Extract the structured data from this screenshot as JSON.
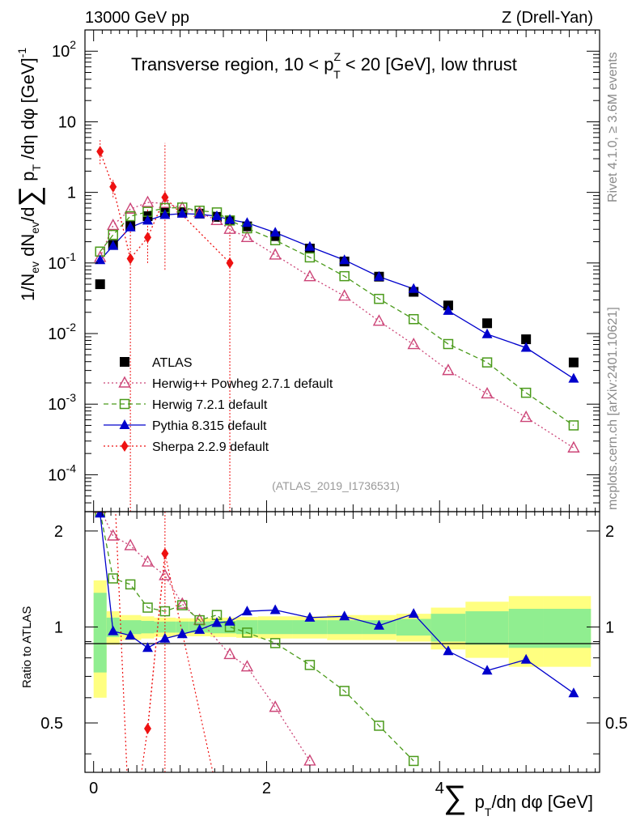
{
  "header": {
    "left": "13000 GeV pp",
    "right": "Z (Drell-Yan)"
  },
  "side_labels": {
    "rivet": "Rivet 4.1.0, ≥ 3.6M events",
    "mcplots": "mcplots.cern.ch [arXiv:2401.10621]"
  },
  "chart_data": [
    {
      "type": "scatter",
      "panel": "main",
      "title": "Transverse region, 10 < p_T^Z < 20 [GeV], low thrust",
      "analysis_id": "(ATLAS_2019_I1736531)",
      "ylabel": "1/N_ev dN_ev/d∑p_T/dη dφ [GeV]^-1",
      "xlabel": "∑ p_T/dη dφ [GeV]",
      "yscale": "log",
      "ylim": [
        3e-05,
        200
      ],
      "xlim": [
        -0.1,
        5.85
      ],
      "y_tick_labels": [
        "10^-4",
        "10^-3",
        "10^-2",
        "10^-1",
        "1",
        "10",
        "10^2"
      ],
      "legend": [
        "ATLAS",
        "Herwig++ Powheg 2.7.1 default",
        "Herwig 7.2.1 default",
        "Pythia 8.315 default",
        "Sherpa 2.2.9 default"
      ],
      "series": [
        {
          "name": "ATLAS",
          "color": "#000000",
          "marker": "square",
          "x": [
            0.075,
            0.225,
            0.425,
            0.625,
            0.825,
            1.025,
            1.225,
            1.425,
            1.575,
            1.775,
            2.1,
            2.5,
            2.9,
            3.3,
            3.7,
            4.1,
            4.55,
            5.0,
            5.55
          ],
          "y": [
            0.05,
            0.18,
            0.34,
            0.46,
            0.52,
            0.52,
            0.5,
            0.45,
            0.4,
            0.33,
            0.24,
            0.16,
            0.105,
            0.064,
            0.039,
            0.025,
            0.014,
            0.0083,
            0.0039
          ]
        },
        {
          "name": "Herwig++ Powheg 2.7.1 default",
          "color": "#cc4477",
          "marker": "triangle-open",
          "line": "dotted",
          "x": [
            0.075,
            0.225,
            0.425,
            0.625,
            0.825,
            1.025,
            1.225,
            1.425,
            1.575,
            1.775,
            2.1,
            2.5,
            2.9,
            3.3,
            3.7,
            4.1,
            4.55,
            5.0,
            5.55
          ],
          "y": [
            0.12,
            0.34,
            0.58,
            0.72,
            0.7,
            0.6,
            0.52,
            0.4,
            0.3,
            0.23,
            0.13,
            0.064,
            0.034,
            0.015,
            0.007,
            0.003,
            0.0014,
            0.00065,
            0.00024
          ]
        },
        {
          "name": "Herwig 7.2.1 default",
          "color": "#4a9a1a",
          "marker": "square-open",
          "line": "dashed",
          "x": [
            0.075,
            0.225,
            0.425,
            0.625,
            0.825,
            1.025,
            1.225,
            1.425,
            1.575,
            1.775,
            2.1,
            2.5,
            2.9,
            3.3,
            3.7,
            4.1,
            4.55,
            5.0,
            5.55
          ],
          "y": [
            0.145,
            0.25,
            0.46,
            0.53,
            0.6,
            0.61,
            0.55,
            0.52,
            0.4,
            0.31,
            0.21,
            0.12,
            0.065,
            0.031,
            0.016,
            0.0071,
            0.0039,
            0.00145,
            0.0005
          ]
        },
        {
          "name": "Pythia 8.315 default",
          "color": "#0000cc",
          "marker": "triangle",
          "line": "solid",
          "x": [
            0.075,
            0.225,
            0.425,
            0.625,
            0.825,
            1.025,
            1.225,
            1.425,
            1.575,
            1.775,
            2.1,
            2.5,
            2.9,
            3.3,
            3.7,
            4.1,
            4.55,
            5.0,
            5.55
          ],
          "y": [
            0.11,
            0.175,
            0.32,
            0.4,
            0.48,
            0.5,
            0.49,
            0.46,
            0.41,
            0.37,
            0.27,
            0.17,
            0.11,
            0.064,
            0.043,
            0.021,
            0.0098,
            0.0063,
            0.0023
          ]
        },
        {
          "name": "Sherpa 2.2.9 default",
          "color": "#ee1111",
          "marker": "diamond",
          "line": "dotted",
          "x": [
            0.075,
            0.225,
            0.425,
            0.625,
            0.825,
            1.575
          ],
          "y": [
            3.8,
            1.2,
            0.115,
            0.23,
            0.85,
            0.1
          ]
        }
      ]
    },
    {
      "type": "scatter",
      "panel": "ratio",
      "ylabel": "Ratio to ATLAS",
      "ylim": [
        0.35,
        2.3
      ],
      "xlim": [
        -0.1,
        5.85
      ],
      "x_tick_labels": [
        "0",
        "2",
        "4"
      ],
      "y_tick_labels": [
        "0.5",
        "1",
        "2"
      ],
      "band_edges": [
        0.0,
        0.15,
        0.3,
        0.55,
        0.7,
        0.95,
        1.1,
        1.35,
        1.5,
        1.65,
        1.9,
        2.3,
        2.7,
        3.1,
        3.5,
        3.9,
        4.3,
        4.8,
        5.2,
        5.75
      ],
      "band_inner": [
        0.28,
        0.07,
        0.05,
        0.045,
        0.04,
        0.04,
        0.04,
        0.045,
        0.045,
        0.05,
        0.05,
        0.05,
        0.05,
        0.05,
        0.06,
        0.1,
        0.12,
        0.14,
        0.14
      ],
      "band_outer": [
        0.4,
        0.12,
        0.09,
        0.08,
        0.07,
        0.065,
        0.065,
        0.07,
        0.07,
        0.075,
        0.08,
        0.08,
        0.09,
        0.09,
        0.1,
        0.15,
        0.2,
        0.25,
        0.25
      ],
      "series": [
        {
          "name": "Herwig++ Powheg 2.7.1 default",
          "color": "#cc4477",
          "x": [
            0.075,
            0.225,
            0.425,
            0.625,
            0.825,
            1.025,
            1.225,
            1.575,
            1.775,
            2.1,
            2.5
          ],
          "y": [
            2.35,
            1.93,
            1.8,
            1.6,
            1.45,
            1.18,
            1.05,
            0.82,
            0.75,
            0.56,
            0.38
          ]
        },
        {
          "name": "Herwig 7.2.1 default",
          "color": "#4a9a1a",
          "x": [
            0.075,
            0.225,
            0.425,
            0.625,
            0.825,
            1.025,
            1.225,
            1.425,
            1.575,
            1.775,
            2.1,
            2.5,
            2.9,
            3.3,
            3.7
          ],
          "y": [
            2.3,
            1.42,
            1.36,
            1.15,
            1.12,
            1.17,
            1.05,
            1.09,
            1.0,
            0.96,
            0.89,
            0.76,
            0.63,
            0.49,
            0.38
          ]
        },
        {
          "name": "Pythia 8.315 default",
          "color": "#0000cc",
          "x": [
            0.075,
            0.225,
            0.425,
            0.625,
            0.825,
            1.025,
            1.225,
            1.425,
            1.575,
            1.775,
            2.1,
            2.5,
            2.9,
            3.3,
            3.7,
            4.1,
            4.55,
            5.0,
            5.55
          ],
          "y": [
            2.27,
            0.97,
            0.94,
            0.86,
            0.92,
            0.95,
            0.98,
            1.03,
            1.04,
            1.12,
            1.13,
            1.07,
            1.08,
            1.01,
            1.1,
            0.84,
            0.73,
            0.79,
            0.62
          ]
        },
        {
          "name": "Sherpa 2.2.9 default",
          "color": "#ee1111",
          "x": [
            0.625,
            0.825
          ],
          "y": [
            0.48,
            1.7
          ]
        }
      ]
    }
  ]
}
